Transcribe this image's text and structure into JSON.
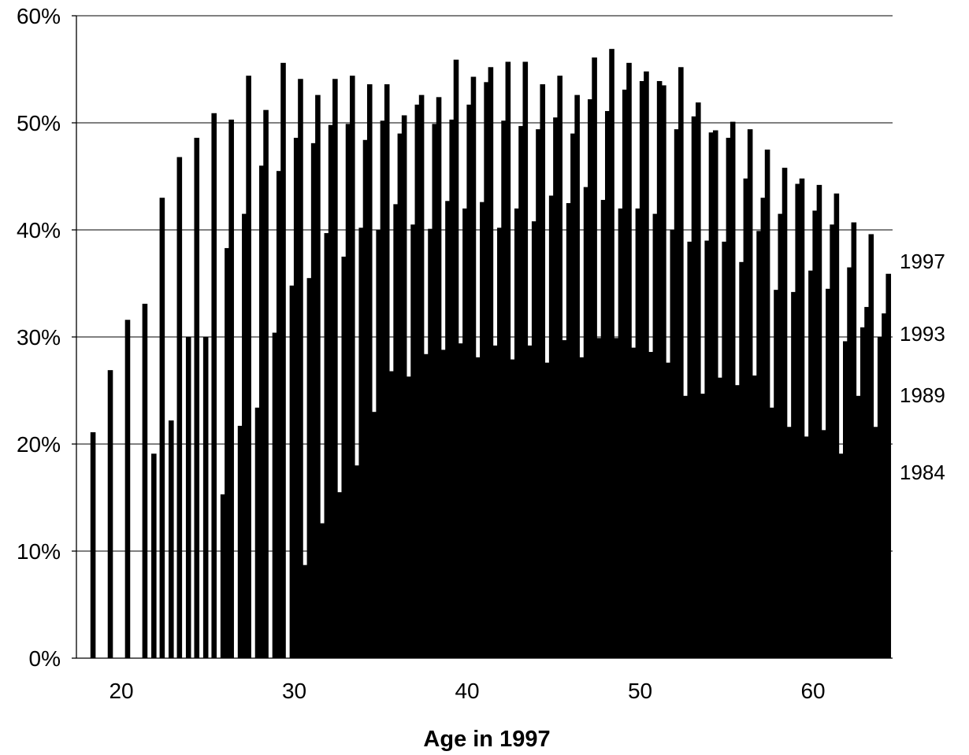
{
  "chart_data": {
    "type": "bar",
    "xlabel": "Age in 1997",
    "ylabel": "",
    "ylim": [
      0,
      0.6
    ],
    "yticks": [
      "0%",
      "10%",
      "20%",
      "30%",
      "40%",
      "50%",
      "60%"
    ],
    "xticks": [
      20,
      30,
      40,
      50,
      60
    ],
    "xlim": [
      17.4,
      64.6
    ],
    "grid": "horizontal",
    "categories": [
      18,
      19,
      20,
      21,
      22,
      23,
      24,
      25,
      26,
      27,
      28,
      29,
      30,
      31,
      32,
      33,
      34,
      35,
      36,
      37,
      38,
      39,
      40,
      41,
      42,
      43,
      44,
      45,
      46,
      47,
      48,
      49,
      50,
      51,
      52,
      53,
      54,
      55,
      56,
      57,
      58,
      59,
      60,
      61,
      62,
      63,
      64
    ],
    "series": [
      {
        "name": "1984",
        "values": [
          null,
          null,
          null,
          null,
          null,
          null,
          null,
          null,
          null,
          null,
          null,
          null,
          null,
          0.087,
          0.126,
          0.155,
          0.18,
          0.23,
          0.268,
          0.263,
          0.284,
          0.288,
          0.294,
          0.281,
          0.292,
          0.279,
          0.292,
          0.276,
          0.297,
          0.281,
          0.299,
          0.299,
          0.29,
          0.286,
          0.276,
          0.245,
          0.247,
          0.262,
          0.255,
          0.264,
          0.234,
          0.216,
          0.207,
          0.213,
          0.191,
          0.245,
          0.216
        ]
      },
      {
        "name": "1989",
        "values": [
          null,
          null,
          null,
          null,
          0.191,
          0.222,
          0.3,
          0.3,
          0.153,
          0.217,
          0.234,
          0.304,
          0.348,
          0.355,
          0.397,
          0.375,
          0.402,
          0.4,
          0.424,
          0.405,
          0.401,
          0.427,
          0.42,
          0.426,
          0.402,
          0.42,
          0.408,
          0.432,
          0.425,
          0.44,
          0.428,
          0.42,
          0.42,
          0.415,
          0.4,
          0.389,
          0.39,
          0.389,
          0.37,
          0.399,
          0.344,
          0.342,
          0.362,
          0.345,
          0.296,
          0.309,
          0.3
        ]
      },
      {
        "name": "1993",
        "values": [
          null,
          null,
          null,
          null,
          null,
          null,
          null,
          null,
          0.383,
          0.415,
          0.46,
          0.455,
          0.486,
          0.481,
          0.498,
          0.499,
          0.484,
          0.502,
          0.49,
          0.517,
          0.499,
          0.503,
          0.517,
          0.538,
          0.502,
          0.497,
          0.494,
          0.505,
          0.49,
          0.522,
          0.511,
          0.531,
          0.539,
          0.539,
          0.494,
          0.506,
          0.491,
          0.486,
          0.448,
          0.43,
          0.415,
          0.443,
          0.418,
          0.405,
          0.365,
          0.328,
          0.322
        ]
      },
      {
        "name": "1997",
        "values": [
          0.211,
          0.269,
          0.316,
          0.331,
          0.43,
          0.468,
          0.486,
          0.509,
          0.503,
          0.544,
          0.512,
          0.556,
          0.541,
          0.526,
          0.541,
          0.544,
          0.536,
          0.536,
          0.507,
          0.526,
          0.524,
          0.559,
          0.543,
          0.552,
          0.557,
          0.557,
          0.536,
          0.544,
          0.526,
          0.561,
          0.569,
          0.556,
          0.548,
          0.535,
          0.552,
          0.519,
          0.493,
          0.501,
          0.494,
          0.475,
          0.458,
          0.448,
          0.442,
          0.434,
          0.407,
          0.396,
          0.359
        ]
      }
    ],
    "series_labels": [
      "1997",
      "1993",
      "1989",
      "1984"
    ]
  }
}
